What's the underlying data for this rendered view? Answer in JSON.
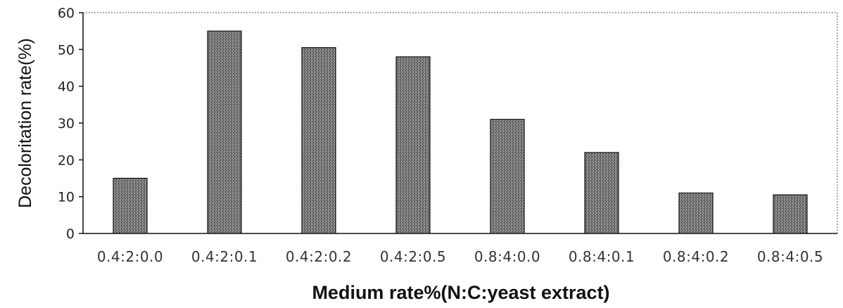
{
  "chart_data": {
    "type": "bar",
    "title": "",
    "xlabel": "Medium rate%(N:C:yeast extract)",
    "ylabel": "Decoloritation rate(%)",
    "categories": [
      "0.4:2:0.0",
      "0.4:2:0.1",
      "0.4:2:0.2",
      "0.4:2:0.5",
      "0.8:4:0.0",
      "0.8:4:0.1",
      "0.8:4:0.2",
      "0.8:4:0.5"
    ],
    "values": [
      15,
      55,
      50.5,
      48,
      31,
      22,
      11,
      10.5
    ],
    "ylim": [
      0,
      60
    ],
    "yticks": [
      "0",
      "10",
      "20",
      "30",
      "40",
      "50",
      "60"
    ],
    "grid": false,
    "legend": "none",
    "colors": {
      "bar_fill": "#6b6b6b",
      "bar_edge": "#111111",
      "axis": "#111111"
    }
  }
}
